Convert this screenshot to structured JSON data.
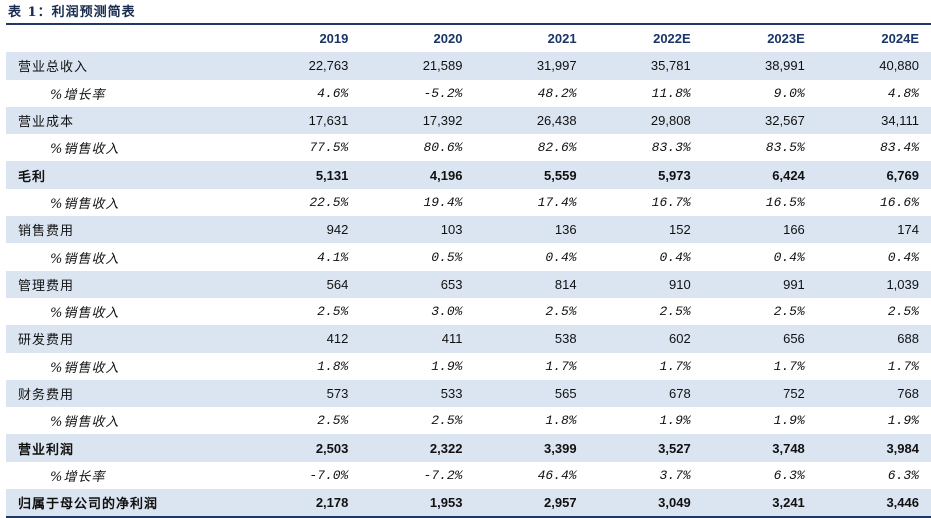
{
  "title": "表 1：利润预测简表",
  "columns": [
    "2019",
    "2020",
    "2021",
    "2022E",
    "2023E",
    "2024E"
  ],
  "rows": [
    {
      "label": "营业总收入",
      "values": [
        "22,763",
        "21,589",
        "31,997",
        "35,781",
        "38,991",
        "40,880"
      ]
    },
    {
      "label": "%增长率",
      "values": [
        "4.6%",
        "-5.2%",
        "48.2%",
        "11.8%",
        "9.0%",
        "4.8%"
      ]
    },
    {
      "label": "营业成本",
      "values": [
        "17,631",
        "17,392",
        "26,438",
        "29,808",
        "32,567",
        "34,111"
      ]
    },
    {
      "label": "%销售收入",
      "values": [
        "77.5%",
        "80.6%",
        "82.6%",
        "83.3%",
        "83.5%",
        "83.4%"
      ]
    },
    {
      "label": "毛利",
      "values": [
        "5,131",
        "4,196",
        "5,559",
        "5,973",
        "6,424",
        "6,769"
      ]
    },
    {
      "label": "%销售收入",
      "values": [
        "22.5%",
        "19.4%",
        "17.4%",
        "16.7%",
        "16.5%",
        "16.6%"
      ]
    },
    {
      "label": "销售费用",
      "values": [
        "942",
        "103",
        "136",
        "152",
        "166",
        "174"
      ]
    },
    {
      "label": "%销售收入",
      "values": [
        "4.1%",
        "0.5%",
        "0.4%",
        "0.4%",
        "0.4%",
        "0.4%"
      ]
    },
    {
      "label": "管理费用",
      "values": [
        "564",
        "653",
        "814",
        "910",
        "991",
        "1,039"
      ]
    },
    {
      "label": "%销售收入",
      "values": [
        "2.5%",
        "3.0%",
        "2.5%",
        "2.5%",
        "2.5%",
        "2.5%"
      ]
    },
    {
      "label": "研发费用",
      "values": [
        "412",
        "411",
        "538",
        "602",
        "656",
        "688"
      ]
    },
    {
      "label": "%销售收入",
      "values": [
        "1.8%",
        "1.9%",
        "1.7%",
        "1.7%",
        "1.7%",
        "1.7%"
      ]
    },
    {
      "label": "财务费用",
      "values": [
        "573",
        "533",
        "565",
        "678",
        "752",
        "768"
      ]
    },
    {
      "label": "%销售收入",
      "values": [
        "2.5%",
        "2.5%",
        "1.8%",
        "1.9%",
        "1.9%",
        "1.9%"
      ]
    },
    {
      "label": "营业利润",
      "values": [
        "2,503",
        "2,322",
        "3,399",
        "3,527",
        "3,748",
        "3,984"
      ]
    },
    {
      "label": "%增长率",
      "values": [
        "-7.0%",
        "-7.2%",
        "46.4%",
        "3.7%",
        "6.3%",
        "6.3%"
      ]
    },
    {
      "label": "归属于母公司的净利润",
      "values": [
        "2,178",
        "1,953",
        "2,957",
        "3,049",
        "3,241",
        "3,446"
      ]
    }
  ],
  "colors": {
    "shade": "#dbe5f1",
    "header_text": "#1a3568",
    "rule": "#1f3864"
  }
}
